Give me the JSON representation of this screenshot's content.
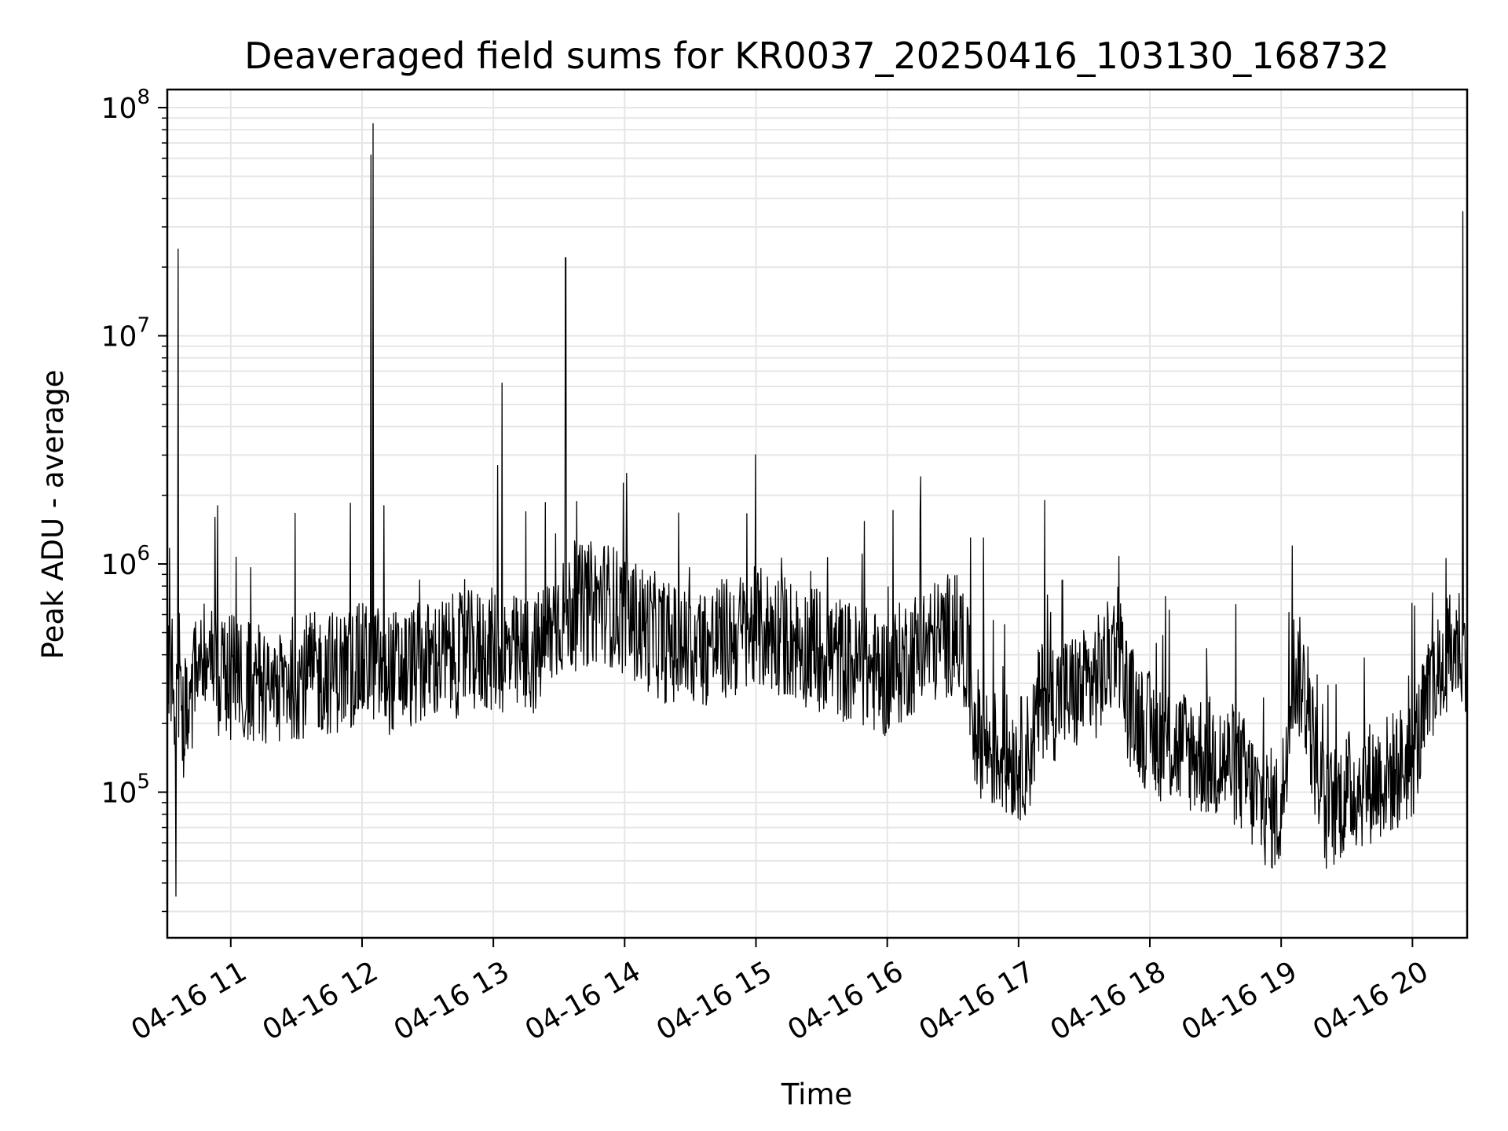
{
  "chart_data": {
    "type": "line",
    "title": "Deaveraged field sums for KR0037_20250416_103130_168732",
    "xlabel": "Time",
    "ylabel": "Peak ADU - average",
    "yscale": "log",
    "ylim": [
      23000,
      120000000
    ],
    "xlim": [
      "04-16 10:31",
      "04-16 20:25"
    ],
    "grid": true,
    "line_color": "#000000",
    "x_ticks": [
      "04-16 11",
      "04-16 12",
      "04-16 13",
      "04-16 14",
      "04-16 15",
      "04-16 16",
      "04-16 17",
      "04-16 18",
      "04-16 19",
      "04-16 20"
    ],
    "y_ticks": [
      {
        "base": "10",
        "exp": "5",
        "value": 100000
      },
      {
        "base": "10",
        "exp": "6",
        "value": 1000000
      },
      {
        "base": "10",
        "exp": "7",
        "value": 10000000
      },
      {
        "base": "10",
        "exp": "8",
        "value": 100000000
      }
    ],
    "series": [
      {
        "x": [
          "10:31",
          "10:35",
          "10:40",
          "10:45",
          "10:50",
          "10:55",
          "11:00",
          "11:10",
          "11:20",
          "11:30",
          "11:40",
          "11:50",
          "12:00",
          "12:05",
          "12:10",
          "12:20",
          "12:30",
          "12:40",
          "12:50",
          "13:00",
          "13:10",
          "13:20",
          "13:30",
          "13:40",
          "13:50",
          "14:00",
          "14:10",
          "14:20",
          "14:30",
          "14:40",
          "14:50",
          "15:00",
          "15:10",
          "15:20",
          "15:30",
          "15:40",
          "15:50",
          "16:00",
          "16:10",
          "16:20",
          "16:30",
          "16:35",
          "16:40",
          "16:45",
          "16:50",
          "17:00",
          "17:05",
          "17:10",
          "17:20",
          "17:30",
          "17:40",
          "17:45",
          "17:50",
          "18:00",
          "18:10",
          "18:20",
          "18:30",
          "18:40",
          "18:50",
          "19:00",
          "19:05",
          "19:10",
          "19:20",
          "19:30",
          "19:40",
          "19:50",
          "20:00",
          "20:10",
          "20:20",
          "20:25"
        ],
        "values": [
          400000,
          250000,
          200000,
          350000,
          400000,
          300000,
          320000,
          300000,
          310000,
          320000,
          330000,
          340000,
          360000,
          380000,
          330000,
          350000,
          370000,
          390000,
          410000,
          420000,
          390000,
          400000,
          600000,
          650000,
          700000,
          600000,
          520000,
          450000,
          420000,
          450000,
          480000,
          520000,
          500000,
          450000,
          420000,
          380000,
          350000,
          320000,
          400000,
          450000,
          500000,
          450000,
          200000,
          160000,
          150000,
          140000,
          150000,
          250000,
          260000,
          280000,
          350000,
          500000,
          250000,
          180000,
          160000,
          150000,
          140000,
          130000,
          90000,
          80000,
          350000,
          300000,
          80000,
          100000,
          110000,
          120000,
          140000,
          300000,
          450000,
          420000
        ]
      }
    ],
    "spikes": [
      {
        "x": "10:36",
        "value": 24000000
      },
      {
        "x": "10:35",
        "value": 35000
      },
      {
        "x": "10:54",
        "value": 1800000
      },
      {
        "x": "12:05",
        "value": 85000000
      },
      {
        "x": "12:04",
        "value": 62000000
      },
      {
        "x": "12:10",
        "value": 1800000
      },
      {
        "x": "13:02",
        "value": 2700000
      },
      {
        "x": "13:04",
        "value": 6200000
      },
      {
        "x": "13:33",
        "value": 22000000
      },
      {
        "x": "16:38",
        "value": 1300000
      },
      {
        "x": "16:44",
        "value": 1300000
      },
      {
        "x": "17:12",
        "value": 1900000
      },
      {
        "x": "17:20",
        "value": 850000
      },
      {
        "x": "19:05",
        "value": 1200000
      },
      {
        "x": "20:23",
        "value": 35000000
      }
    ]
  }
}
